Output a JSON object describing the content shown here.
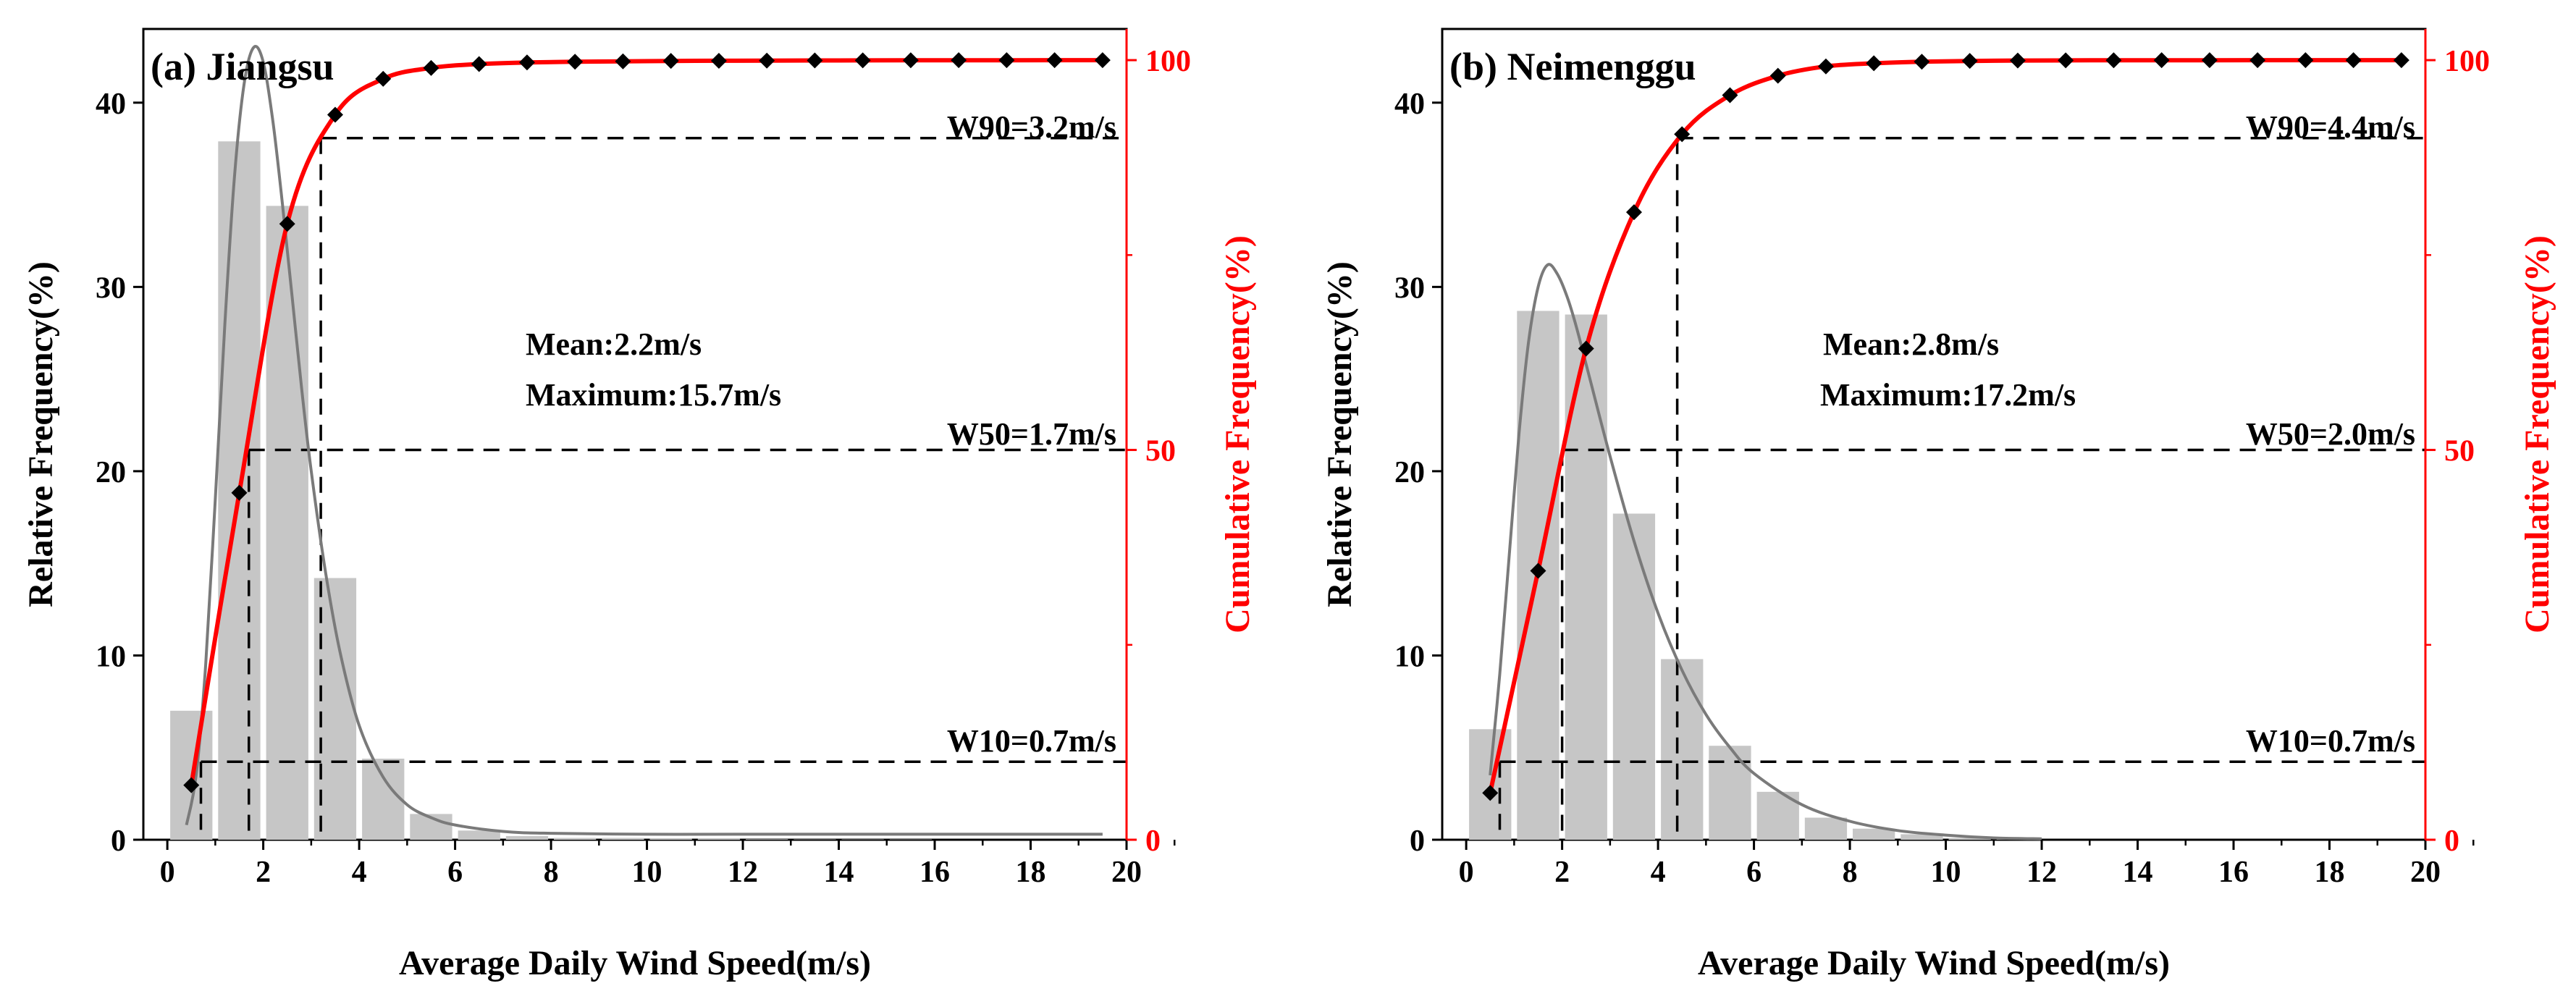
{
  "colors": {
    "bar": "#c6c6c6",
    "fit_curve": "#7a7a7a",
    "cumulative": "#ff0000",
    "marker": "#000000",
    "axis_black": "#000000",
    "axis_red": "#ff0000"
  },
  "chart_data": [
    {
      "type": "bar",
      "panel_label": "(a) Jiangsu",
      "xlabel": "Average Daily Wind Speed(m/s)",
      "ylabel": "Relative Frequency(%)",
      "y2label": "Cumulative Frequency(%)",
      "xlim": [
        -0.5,
        20
      ],
      "ylim": [
        0,
        44
      ],
      "y2lim": [
        0,
        104
      ],
      "xticks": [
        0,
        2,
        4,
        6,
        8,
        10,
        12,
        14,
        16,
        18,
        20
      ],
      "yticks": [
        0,
        10,
        20,
        30,
        40
      ],
      "y2ticks": [
        0,
        50,
        100
      ],
      "bars": {
        "x": [
          0.5,
          1.5,
          2.5,
          3.5,
          4.5,
          5.5,
          6.5,
          7.5,
          8.5,
          9.5,
          10.5,
          11.5,
          12.5,
          13.5,
          14.5,
          15.5
        ],
        "values": [
          7.0,
          37.9,
          34.4,
          14.2,
          4.4,
          1.4,
          0.5,
          0.2,
          0.1,
          0.1,
          0.05,
          0.05,
          0.03,
          0.02,
          0.02,
          0.02
        ]
      },
      "fit_curve": {
        "x": [
          0.4,
          0.6,
          0.8,
          1.0,
          1.2,
          1.4,
          1.6,
          1.8,
          2.0,
          2.2,
          2.4,
          2.6,
          2.8,
          3.0,
          3.3,
          3.6,
          4.0,
          4.5,
          5.0,
          5.5,
          6.0,
          7.0,
          8.0,
          10.0,
          12.0,
          15.0,
          19.5
        ],
        "values": [
          0.8,
          3.5,
          9.5,
          18.5,
          28.0,
          36.0,
          41.0,
          43.0,
          42.2,
          39.0,
          34.5,
          29.5,
          24.5,
          20.0,
          14.5,
          10.2,
          6.2,
          3.4,
          1.9,
          1.2,
          0.8,
          0.45,
          0.35,
          0.3,
          0.3,
          0.3,
          0.3
        ]
      },
      "cumulative": {
        "x": [
          0.5,
          1.5,
          2.5,
          3.5,
          4.5,
          5.5,
          6.5,
          7.5,
          8.5,
          9.5,
          10.5,
          11.5,
          12.5,
          13.5,
          14.5,
          15.5,
          16.5,
          17.5,
          18.5,
          19.5
        ],
        "values": [
          7.0,
          44.5,
          79.0,
          93.0,
          97.6,
          99.0,
          99.5,
          99.7,
          99.8,
          99.85,
          99.9,
          99.92,
          99.94,
          99.96,
          99.97,
          99.98,
          99.99,
          99.99,
          100,
          100
        ]
      },
      "thresholds": [
        {
          "label": "W90=3.2m/s",
          "speed": 3.2,
          "cum": 90
        },
        {
          "label": "W50=1.7m/s",
          "speed": 1.7,
          "cum": 50
        },
        {
          "label": "W10=0.7m/s",
          "speed": 0.7,
          "cum": 10
        }
      ],
      "annotations": [
        "Mean:2.2m/s",
        "Maximum:15.7m/s"
      ]
    },
    {
      "type": "bar",
      "panel_label": "(b) Neimenggu",
      "xlabel": "Average Daily Wind Speed(m/s)",
      "ylabel": "Relative Frequency(%)",
      "y2label": "Cumulative Frequency(%)",
      "xlim": [
        -0.5,
        20
      ],
      "ylim": [
        0,
        44
      ],
      "y2lim": [
        0,
        104
      ],
      "xticks": [
        0,
        2,
        4,
        6,
        8,
        10,
        12,
        14,
        16,
        18,
        20
      ],
      "yticks": [
        0,
        10,
        20,
        30,
        40
      ],
      "y2ticks": [
        0,
        50,
        100
      ],
      "bars": {
        "x": [
          0.5,
          1.5,
          2.5,
          3.5,
          4.5,
          5.5,
          6.5,
          7.5,
          8.5,
          9.5,
          10.5,
          11.5
        ],
        "values": [
          6.0,
          28.7,
          28.5,
          17.7,
          9.8,
          5.1,
          2.6,
          1.2,
          0.6,
          0.3,
          0.1,
          0.05
        ]
      },
      "fit_curve": {
        "x": [
          0.5,
          0.7,
          0.9,
          1.1,
          1.3,
          1.5,
          1.7,
          1.9,
          2.1,
          2.3,
          2.6,
          3.0,
          3.5,
          4.0,
          4.5,
          5.0,
          5.5,
          6.0,
          7.0,
          8.0,
          9.0,
          10.0,
          11.0,
          12.0
        ],
        "values": [
          3.5,
          9.0,
          15.5,
          22.0,
          27.0,
          30.0,
          31.2,
          30.7,
          29.5,
          27.8,
          24.8,
          20.8,
          16.2,
          12.3,
          9.2,
          6.8,
          5.0,
          3.6,
          1.9,
          1.0,
          0.5,
          0.25,
          0.1,
          0.05
        ]
      },
      "cumulative": {
        "x": [
          0.5,
          1.5,
          2.5,
          3.5,
          4.5,
          5.5,
          6.5,
          7.5,
          8.5,
          9.5,
          10.5,
          11.5,
          12.5,
          13.5,
          14.5,
          15.5,
          16.5,
          17.5,
          18.5,
          19.5
        ],
        "values": [
          6.0,
          34.5,
          63.0,
          80.5,
          90.5,
          95.5,
          98.0,
          99.2,
          99.6,
          99.8,
          99.9,
          99.95,
          99.97,
          99.98,
          99.99,
          99.99,
          100,
          100,
          100,
          100
        ]
      },
      "thresholds": [
        {
          "label": "W90=4.4m/s",
          "speed": 4.4,
          "cum": 90
        },
        {
          "label": "W50=2.0m/s",
          "speed": 2.0,
          "cum": 50
        },
        {
          "label": "W10=0.7m/s",
          "speed": 0.7,
          "cum": 10
        }
      ],
      "annotations": [
        "Mean:2.8m/s",
        "Maximum:17.2m/s"
      ]
    }
  ]
}
